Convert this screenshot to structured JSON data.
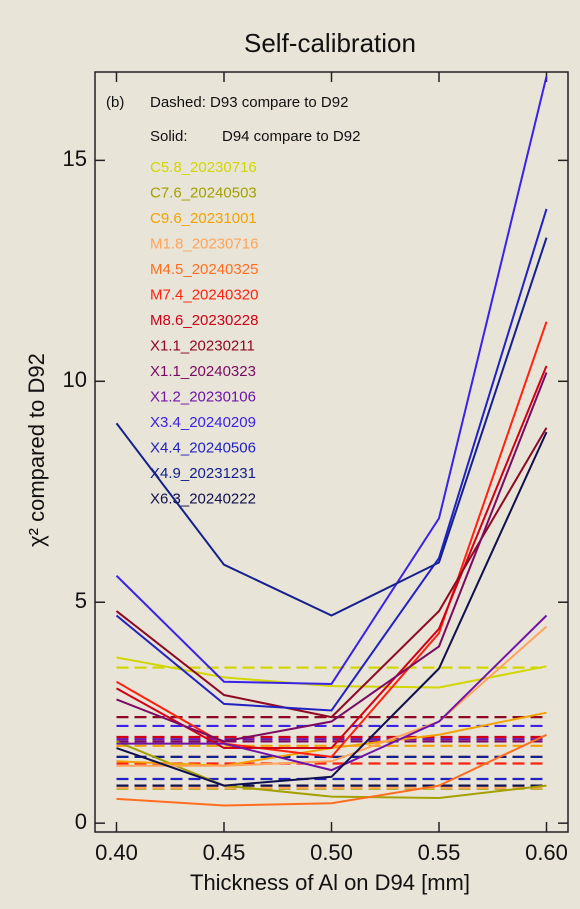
{
  "chart_data": {
    "type": "line",
    "title": "Self-calibration",
    "x_label": "Thickness of Al on D94 [mm]",
    "y_label": "χ² compared to D92",
    "panel_label": "(b)",
    "legend_dashed": "Dashed: D93 compare to D92",
    "legend_solid_label": "Solid:",
    "legend_solid_text": "D94 compare to D92",
    "x": [
      0.4,
      0.45,
      0.5,
      0.55,
      0.6
    ],
    "xlim": [
      0.39,
      0.61
    ],
    "ylim": [
      -0.2,
      17
    ],
    "xticks": [
      {
        "value": 0.4,
        "label": "0.40"
      },
      {
        "value": 0.45,
        "label": "0.45"
      },
      {
        "value": 0.5,
        "label": "0.50"
      },
      {
        "value": 0.55,
        "label": "0.55"
      },
      {
        "value": 0.6,
        "label": "0.60"
      }
    ],
    "yticks": [
      0,
      5,
      10,
      15
    ],
    "series": [
      {
        "name": "C5.8_20230716",
        "color": "#d2d600",
        "values": [
          3.75,
          3.3,
          3.1,
          3.07,
          3.55
        ],
        "dashed_value": 3.52
      },
      {
        "name": "C7.6_20240503",
        "color": "#a3a000",
        "values": [
          1.85,
          0.85,
          0.6,
          0.57,
          0.85
        ],
        "dashed_value": 0.78
      },
      {
        "name": "C9.6_20231001",
        "color": "#f2a200",
        "values": [
          1.4,
          1.3,
          1.7,
          2.0,
          2.5
        ],
        "dashed_value": 1.75
      },
      {
        "name": "M1.8_20230716",
        "color": "#ffa45a",
        "values": [
          1.3,
          1.3,
          1.4,
          2.3,
          4.45
        ],
        "dashed_value": 0.8
      },
      {
        "name": "M4.5_20240325",
        "color": "#ff6e20",
        "values": [
          0.55,
          0.4,
          0.45,
          0.85,
          2.0
        ],
        "dashed_value": 1.5
      },
      {
        "name": "M7.4_20240320",
        "color": "#ff2212",
        "values": [
          3.2,
          1.8,
          1.5,
          4.3,
          11.35
        ],
        "dashed_value": 1.35
      },
      {
        "name": "M8.6_20230228",
        "color": "#d00016",
        "values": [
          3.05,
          1.7,
          1.7,
          4.4,
          10.35
        ],
        "dashed_value": 1.95
      },
      {
        "name": "X1.1_20230211",
        "color": "#8e0a24",
        "values": [
          4.8,
          2.9,
          2.4,
          4.8,
          8.95
        ],
        "dashed_value": 2.4
      },
      {
        "name": "X1.1_20240323",
        "color": "#7a0a62",
        "values": [
          2.8,
          1.85,
          2.3,
          4.0,
          10.2
        ],
        "dashed_value": 1.85
      },
      {
        "name": "X1.2_20230106",
        "color": "#6e14a8",
        "values": [
          1.8,
          1.8,
          1.2,
          2.3,
          4.7
        ],
        "dashed_value": 1.9
      },
      {
        "name": "X3.4_20240209",
        "color": "#3a22e6",
        "values": [
          5.6,
          3.2,
          3.15,
          6.9,
          16.9
        ],
        "dashed_value": 2.2
      },
      {
        "name": "X4.4_20240506",
        "color": "#2222c4",
        "values": [
          4.7,
          2.7,
          2.55,
          6.0,
          13.9
        ],
        "dashed_value": 1.0
      },
      {
        "name": "X4.9_20231231",
        "color": "#14208e",
        "values": [
          9.05,
          5.85,
          4.7,
          5.9,
          13.25
        ],
        "dashed_value": 1.5
      },
      {
        "name": "X6.3_20240222",
        "color": "#10104e",
        "values": [
          1.7,
          0.85,
          1.05,
          3.5,
          8.85
        ],
        "dashed_value": 0.85
      }
    ]
  }
}
